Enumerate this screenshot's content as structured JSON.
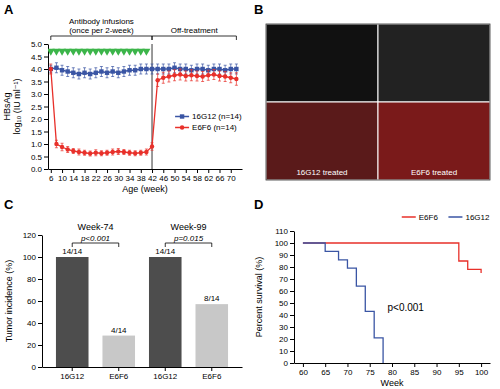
{
  "chart_data": [
    {
      "type": "line",
      "title": "A",
      "xlabel": "Age (week)",
      "ylabel": "HBsAg\nlog₁₀ (IU ml⁻¹)",
      "x": [
        6,
        8,
        10,
        12,
        14,
        16,
        18,
        20,
        22,
        24,
        26,
        28,
        30,
        32,
        34,
        36,
        38,
        40,
        42,
        44,
        46,
        48,
        50,
        52,
        54,
        56,
        58,
        60,
        62,
        64,
        66,
        68,
        70,
        72
      ],
      "xlim": [
        5,
        74
      ],
      "xticks": [
        6,
        10,
        14,
        18,
        22,
        26,
        30,
        34,
        38,
        42,
        46,
        50,
        54,
        58,
        62,
        66,
        70
      ],
      "ylim": [
        0,
        5
      ],
      "yticks": [
        {
          "value": 0,
          "label": "0.0"
        },
        0.5,
        {
          "value": 1,
          "label": "1.0"
        },
        1.5,
        {
          "value": 2,
          "label": "2.0"
        },
        2.5,
        {
          "value": 3,
          "label": "3.0"
        },
        3.5,
        {
          "value": 4,
          "label": "4.0"
        },
        4.5,
        {
          "value": 5,
          "label": "5.0"
        }
      ],
      "legend": "right",
      "vlines": [
        42
      ],
      "annotations": [
        {
          "text": "Antibody infusions\n(once per 2-week)",
          "x": [
            6,
            42
          ]
        },
        {
          "text": "Off-treatment",
          "x": [
            42,
            72
          ]
        }
      ],
      "series": [
        {
          "name": "16G12 (n=14)",
          "color": "#3a55a4",
          "marker": "square",
          "values": [
            4.0,
            4.05,
            3.95,
            3.9,
            3.85,
            3.8,
            3.85,
            3.8,
            3.85,
            3.9,
            3.85,
            3.9,
            3.85,
            3.9,
            3.95,
            3.95,
            4.0,
            4.0,
            4.0,
            4.0,
            4.0,
            4.0,
            4.05,
            4.0,
            4.0,
            3.95,
            4.0,
            4.0,
            3.95,
            4.0,
            4.0,
            3.95,
            4.0,
            4.0
          ],
          "errors": [
            0.15,
            0.2,
            0.2,
            0.2,
            0.2,
            0.2,
            0.2,
            0.2,
            0.2,
            0.2,
            0.2,
            0.2,
            0.2,
            0.2,
            0.2,
            0.2,
            0.2,
            0.2,
            0.2,
            0.2,
            0.2,
            0.2,
            0.2,
            0.2,
            0.2,
            0.2,
            0.2,
            0.2,
            0.2,
            0.2,
            0.2,
            0.2,
            0.2,
            0.2
          ]
        },
        {
          "name": "E6F6 (n=14)",
          "color": "#e8302a",
          "marker": "circle",
          "values": [
            4.0,
            1.0,
            0.88,
            0.78,
            0.72,
            0.68,
            0.65,
            0.62,
            0.65,
            0.63,
            0.65,
            0.68,
            0.7,
            0.68,
            0.65,
            0.63,
            0.65,
            0.68,
            0.9,
            3.55,
            3.65,
            3.7,
            3.75,
            3.78,
            3.72,
            3.75,
            3.72,
            3.7,
            3.75,
            3.78,
            3.72,
            3.7,
            3.65,
            3.6
          ],
          "errors": [
            0.2,
            0.15,
            0.15,
            0.12,
            0.1,
            0.12,
            0.1,
            0.1,
            0.12,
            0.1,
            0.1,
            0.12,
            0.12,
            0.1,
            0.1,
            0.1,
            0.1,
            0.12,
            0.15,
            0.25,
            0.22,
            0.22,
            0.22,
            0.22,
            0.2,
            0.22,
            0.2,
            0.2,
            0.2,
            0.2,
            0.2,
            0.2,
            0.2,
            0.25
          ]
        },
        {
          "type": "scatter",
          "color": "#3cb54a",
          "marker": "triangle-down",
          "x": [
            6,
            8,
            10,
            12,
            14,
            16,
            18,
            20,
            22,
            24,
            26,
            28,
            30,
            32,
            34,
            36,
            38,
            40
          ],
          "values": [
            4.72,
            4.72,
            4.72,
            4.72,
            4.72,
            4.72,
            4.72,
            4.72,
            4.72,
            4.72,
            4.72,
            4.72,
            4.72,
            4.72,
            4.72,
            4.72,
            4.72,
            4.72
          ]
        }
      ]
    },
    {
      "type": "image",
      "title": "B",
      "colors": [
        "#111111",
        "#222222",
        "#5a1a1a",
        "#7a1a1a"
      ],
      "annotations": [
        {
          "text": "16G12 treated"
        },
        {
          "text": "E6F6 treated"
        }
      ]
    },
    {
      "type": "bar",
      "title": "C",
      "ylabel": "Tumor incidence (%)",
      "categories": [
        "16G12",
        "E6F6",
        "16G12",
        "E6F6"
      ],
      "values": [
        100,
        28.57,
        100,
        57.14
      ],
      "value_labels": [
        "14/14",
        "4/14",
        "14/14",
        "8/14"
      ],
      "data_labels": true,
      "colors": [
        "#4d4d4d",
        "#c8c8c8",
        "#4d4d4d",
        "#c8c8c8"
      ],
      "groups": [
        "Week-74",
        "Week-99"
      ],
      "annotations": [
        {
          "text": "p<0.001"
        },
        {
          "text": "p=0.015"
        }
      ],
      "ylim": [
        0,
        120
      ],
      "yticks": [
        0,
        20,
        40,
        60,
        80,
        100,
        120
      ]
    },
    {
      "type": "line",
      "title": "D",
      "xlabel": "Week",
      "ylabel": "Percent survival (%)",
      "xlim": [
        58,
        102
      ],
      "xticks": [
        60,
        65,
        70,
        75,
        80,
        85,
        90,
        95,
        100
      ],
      "ylim": [
        0,
        110
      ],
      "yticks": [
        0,
        10,
        20,
        30,
        40,
        50,
        60,
        70,
        80,
        90,
        100,
        110
      ],
      "legend": "top",
      "annotations": [
        {
          "text": "p<0.001"
        }
      ],
      "series": [
        {
          "name": "E6F6",
          "color": "#e8302a",
          "line_style": "steps",
          "x": [
            60,
            95,
            95,
            97,
            97,
            100,
            100
          ],
          "values": [
            100,
            100,
            85,
            85,
            78,
            78,
            75
          ]
        },
        {
          "name": "16G12",
          "color": "#3a55a4",
          "line_style": "steps",
          "x": [
            60,
            65,
            65,
            68,
            68,
            70,
            70,
            72,
            72,
            74,
            74,
            76,
            76,
            78,
            78
          ],
          "values": [
            100,
            100,
            93,
            93,
            86,
            86,
            79,
            79,
            64,
            64,
            43,
            43,
            21,
            21,
            0
          ]
        }
      ]
    }
  ]
}
